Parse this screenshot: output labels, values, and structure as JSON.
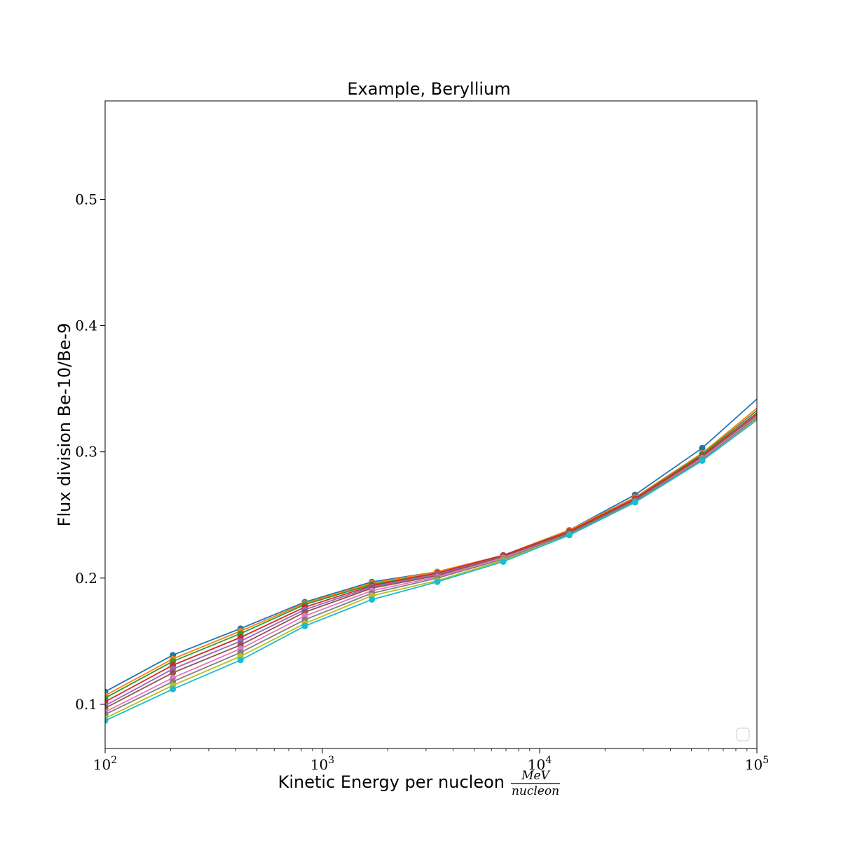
{
  "chart_data": {
    "type": "line",
    "title": "Example, Beryllium",
    "xlabel": "Kinetic Energy per nucleon",
    "xlabel_unit_numerator": "MeV",
    "xlabel_unit_denominator": "nucleon",
    "ylabel": "Flux division Be-10/Be-9",
    "xscale": "log",
    "xlim": [
      100,
      100000
    ],
    "ylim": [
      0.065,
      0.578
    ],
    "x_ticks": [
      {
        "value": 100,
        "base": "10",
        "exp": "2"
      },
      {
        "value": 1000,
        "base": "10",
        "exp": "3"
      },
      {
        "value": 10000,
        "base": "10",
        "exp": "4"
      },
      {
        "value": 100000,
        "base": "10",
        "exp": "5"
      }
    ],
    "y_ticks": [
      {
        "value": 0.1,
        "label": "0.1"
      },
      {
        "value": 0.2,
        "label": "0.2"
      },
      {
        "value": 0.3,
        "label": "0.3"
      },
      {
        "value": 0.4,
        "label": "0.4"
      },
      {
        "value": 0.5,
        "label": "0.5"
      }
    ],
    "grid": false,
    "legend": "lower-right",
    "x": [
      100,
      205,
      420,
      830,
      1690,
      3380,
      6800,
      13700,
      27500,
      56000,
      113000
    ],
    "series": [
      {
        "color": "#1f77b4",
        "values": [
          0.11,
          0.139,
          0.16,
          0.181,
          0.197,
          0.205,
          0.218,
          0.238,
          0.266,
          0.303,
          0.35
        ]
      },
      {
        "color": "#ff7f0e",
        "values": [
          0.107,
          0.136,
          0.158,
          0.18,
          0.196,
          0.205,
          0.218,
          0.238,
          0.264,
          0.299,
          0.342
        ]
      },
      {
        "color": "#2ca02c",
        "values": [
          0.105,
          0.134,
          0.156,
          0.179,
          0.195,
          0.204,
          0.218,
          0.237,
          0.263,
          0.298,
          0.34
        ]
      },
      {
        "color": "#d62728",
        "values": [
          0.102,
          0.131,
          0.153,
          0.177,
          0.194,
          0.204,
          0.218,
          0.237,
          0.263,
          0.297,
          0.338
        ]
      },
      {
        "color": "#9467bd",
        "values": [
          0.099,
          0.128,
          0.15,
          0.175,
          0.193,
          0.203,
          0.217,
          0.236,
          0.262,
          0.296,
          0.337
        ]
      },
      {
        "color": "#8c564b",
        "values": [
          0.097,
          0.125,
          0.147,
          0.173,
          0.192,
          0.202,
          0.217,
          0.236,
          0.262,
          0.296,
          0.336
        ]
      },
      {
        "color": "#e377c2",
        "values": [
          0.094,
          0.121,
          0.144,
          0.17,
          0.19,
          0.201,
          0.216,
          0.235,
          0.261,
          0.295,
          0.335
        ]
      },
      {
        "color": "#7f7f7f",
        "values": [
          0.092,
          0.118,
          0.141,
          0.167,
          0.188,
          0.2,
          0.215,
          0.235,
          0.261,
          0.294,
          0.334
        ]
      },
      {
        "color": "#bcbd22",
        "values": [
          0.089,
          0.115,
          0.138,
          0.164,
          0.186,
          0.198,
          0.214,
          0.234,
          0.26,
          0.293,
          0.333
        ]
      },
      {
        "color": "#17becf",
        "values": [
          0.087,
          0.112,
          0.135,
          0.162,
          0.183,
          0.197,
          0.213,
          0.234,
          0.26,
          0.293,
          0.332
        ]
      }
    ]
  }
}
